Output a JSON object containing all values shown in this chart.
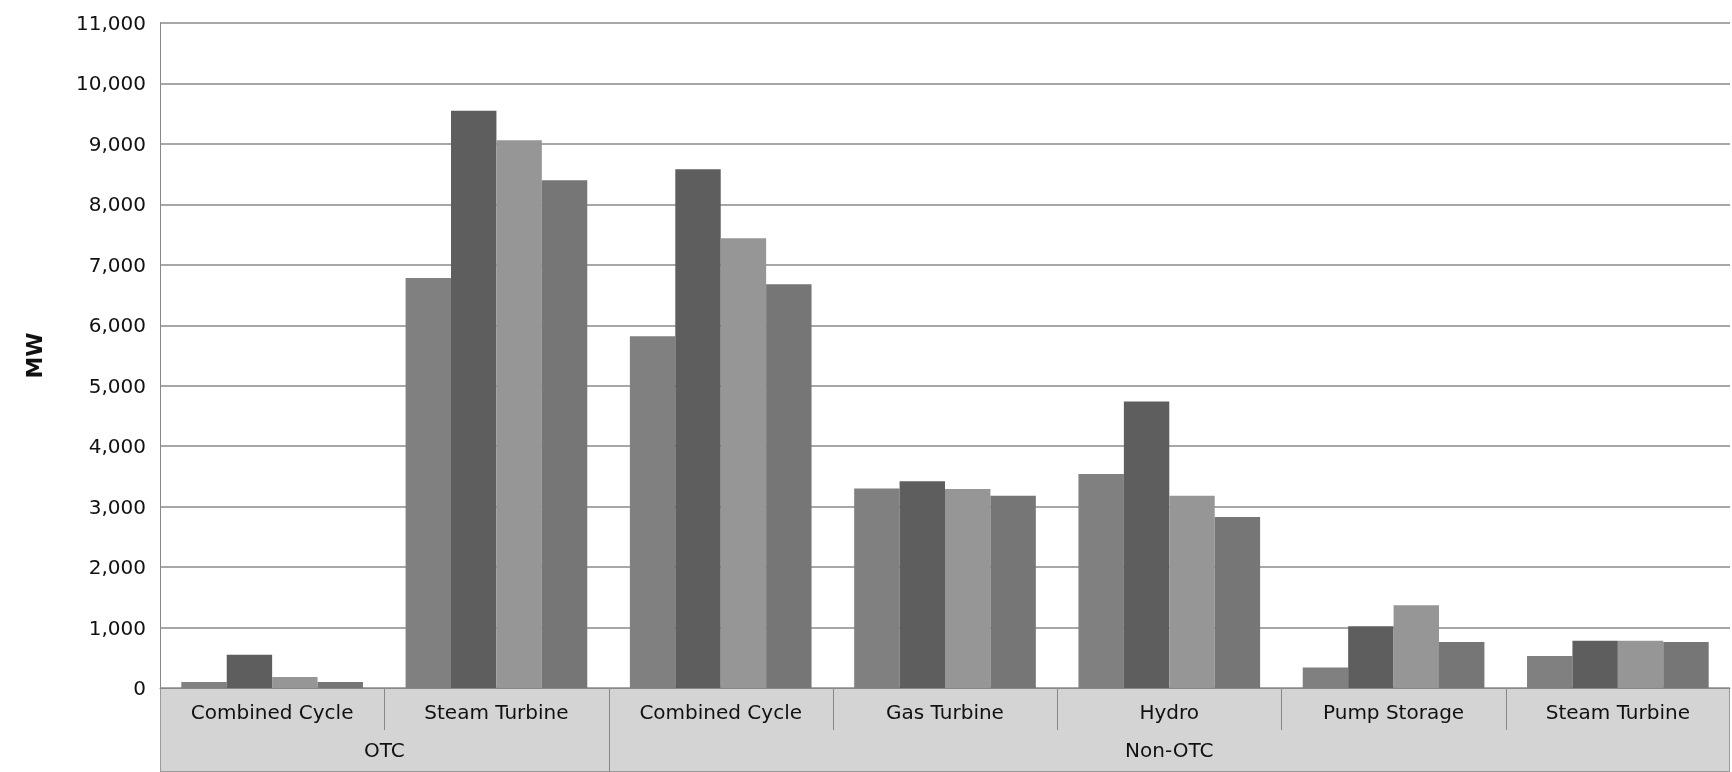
{
  "chart_data": {
    "type": "bar",
    "ylabel": "MW",
    "categories": [
      "Combined Cycle",
      "Steam Turbine",
      "Combined Cycle",
      "Gas Turbine",
      "Hydro",
      "Pump Storage",
      "Steam Turbine"
    ],
    "series": [
      {
        "color": "#808080",
        "values": [
          100,
          6780,
          5820,
          3300,
          3540,
          340,
          530
        ]
      },
      {
        "color": "#5e5e5e",
        "values": [
          550,
          9550,
          8580,
          3420,
          4740,
          1020,
          780
        ]
      },
      {
        "color": "#969696",
        "values": [
          180,
          9060,
          7440,
          3290,
          3180,
          1370,
          780
        ]
      },
      {
        "color": "#767676",
        "values": [
          100,
          8400,
          6680,
          3180,
          2830,
          760,
          760
        ]
      }
    ],
    "annotations": [
      "OTC",
      "Non-OTC"
    ],
    "ylim": [
      0,
      11000
    ],
    "yticks": [
      0,
      {
        "value": 1000,
        "label": "1,000"
      },
      {
        "value": 2000,
        "label": "2,000"
      },
      {
        "value": 3000,
        "label": "3,000"
      },
      {
        "value": 4000,
        "label": "4,000"
      },
      {
        "value": 5000,
        "label": "5,000"
      },
      {
        "value": 6000,
        "label": "6,000"
      },
      {
        "value": 7000,
        "label": "7,000"
      },
      {
        "value": 8000,
        "label": "8,000"
      },
      {
        "value": 9000,
        "label": "9,000"
      },
      {
        "value": 10000,
        "label": "10,000"
      },
      {
        "value": 11000,
        "label": "11,000"
      }
    ],
    "grid": "y"
  }
}
